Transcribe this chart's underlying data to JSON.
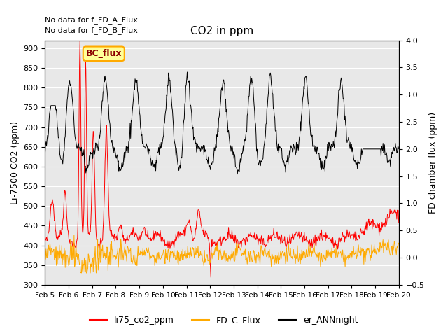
{
  "title": "CO2 in ppm",
  "ylabel_left": "Li-7500 CO2 (ppm)",
  "ylabel_right": "FD chamber flux (ppm)",
  "ylim_left": [
    300,
    920
  ],
  "ylim_right": [
    -0.5,
    4.0
  ],
  "yticks_left": [
    300,
    350,
    400,
    450,
    500,
    550,
    600,
    650,
    700,
    750,
    800,
    850,
    900
  ],
  "yticks_right": [
    -0.5,
    0.0,
    0.5,
    1.0,
    1.5,
    2.0,
    2.5,
    3.0,
    3.5,
    4.0
  ],
  "xtick_labels": [
    "Feb 5",
    "Feb 6",
    "Feb 7",
    "Feb 8",
    "Feb 9",
    "Feb 10",
    "Feb 11",
    "Feb 12",
    "Feb 13",
    "Feb 14",
    "Feb 15",
    "Feb 16",
    "Feb 17",
    "Feb 18",
    "Feb 19",
    "Feb 20"
  ],
  "annotations": [
    "No data for f_FD_A_Flux",
    "No data for f_FD_B_Flux"
  ],
  "legend_label_left": "BC_flux",
  "color_red": "#ff0000",
  "color_orange": "#ffaa00",
  "color_black": "#000000",
  "bg_color": "#e8e8e8",
  "line_colors": [
    "#ff0000",
    "#ffaa00",
    "#000000"
  ],
  "legend_labels": [
    "li75_co2_ppm",
    "FD_C_Flux",
    "er_ANNnight"
  ]
}
